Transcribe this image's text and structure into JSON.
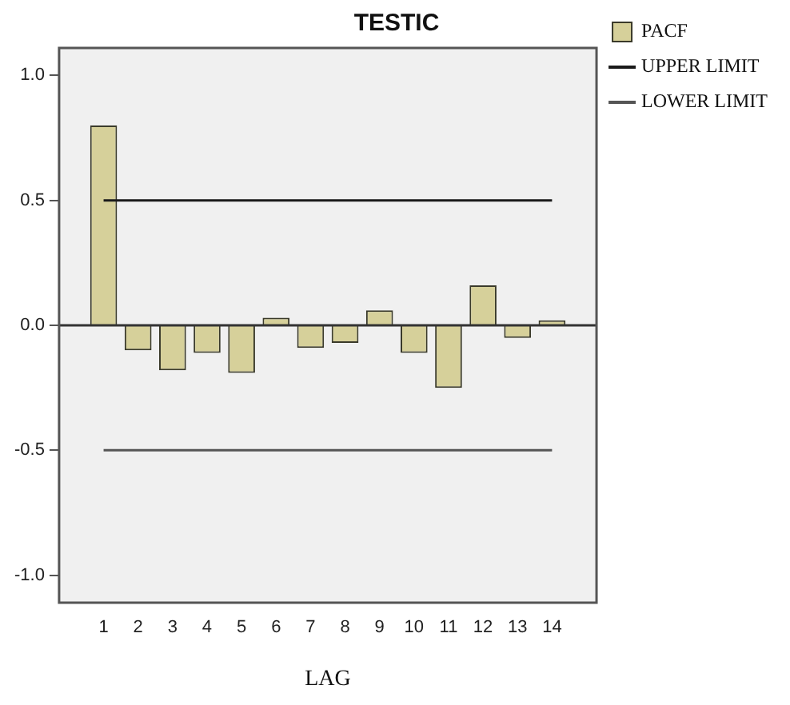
{
  "chart_data": {
    "type": "bar",
    "title": "TESTIC",
    "xlabel": "LAG",
    "x": [
      1,
      2,
      3,
      4,
      5,
      6,
      7,
      8,
      9,
      10,
      11,
      12,
      13,
      14
    ],
    "xlim": [
      -0.29,
      15.29
    ],
    "xticks": [
      1,
      2,
      3,
      4,
      5,
      6,
      7,
      8,
      9,
      10,
      11,
      12,
      13,
      14
    ],
    "ylim": [
      -1.11,
      1.11
    ],
    "yticks": [
      {
        "value": -1,
        "label": "-1.0"
      },
      {
        "value": -0.5,
        "label": "-0.5"
      },
      {
        "value": 0,
        "label": "0.0"
      },
      {
        "value": 0.5,
        "label": "0.5"
      },
      {
        "value": 1,
        "label": "1.0"
      }
    ],
    "series": [
      {
        "name": "PACF",
        "color": "#d6d09a",
        "values": [
          0.8,
          -0.1,
          -0.18,
          -0.11,
          -0.19,
          0.03,
          -0.09,
          -0.07,
          0.06,
          -0.11,
          -0.25,
          0.16,
          -0.05,
          0.02
        ]
      },
      {
        "name": "UPPER LIMIT",
        "type": "line",
        "color": "#1a1a1a",
        "values": [
          0.5,
          0.5,
          0.5,
          0.5,
          0.5,
          0.5,
          0.5,
          0.5,
          0.5,
          0.5,
          0.5,
          0.5,
          0.5,
          0.5
        ]
      },
      {
        "name": "LOWER LIMIT",
        "type": "line",
        "color": "#555555",
        "values": [
          -0.5,
          -0.5,
          -0.5,
          -0.5,
          -0.5,
          -0.5,
          -0.5,
          -0.5,
          -0.5,
          -0.5,
          -0.5,
          -0.5,
          -0.5,
          -0.5
        ]
      }
    ],
    "ref_lines": [
      {
        "axis": "y",
        "value": 0,
        "color": "#333333"
      }
    ],
    "grid": false,
    "legend": "top right",
    "marker": "none"
  }
}
